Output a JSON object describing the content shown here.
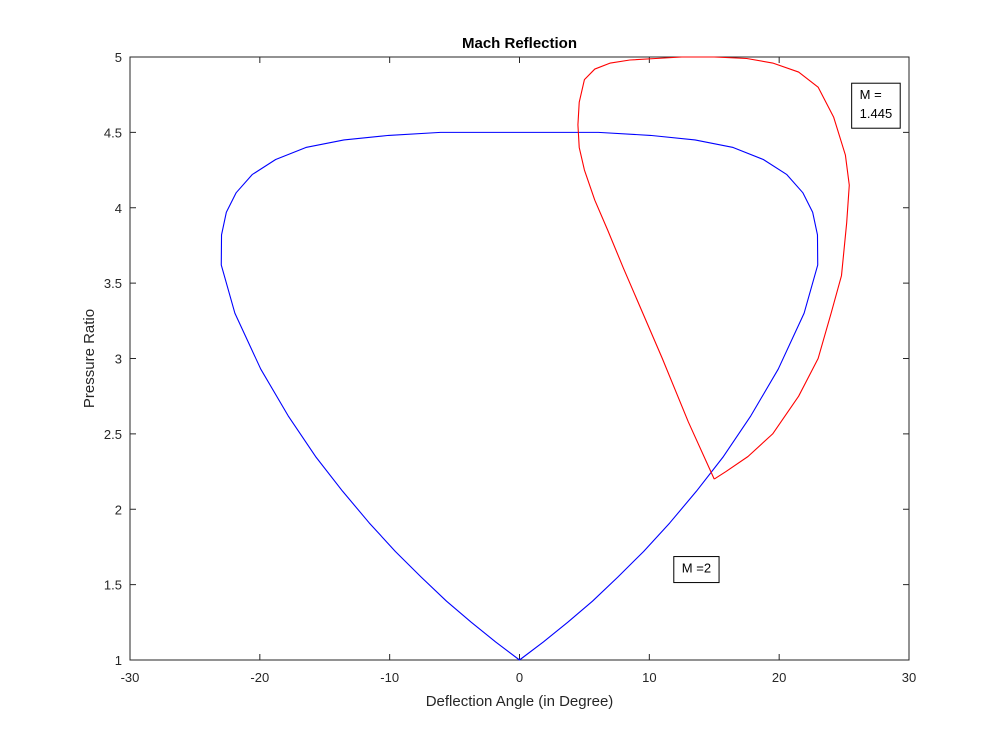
{
  "chart_data": {
    "type": "line",
    "title": "Mach Reflection",
    "xlabel": "Deflection Angle (in Degree)",
    "ylabel": "Pressure Ratio",
    "xlim": [
      -30,
      30
    ],
    "ylim": [
      1,
      5
    ],
    "xticks": [
      -30,
      -20,
      -10,
      0,
      10,
      20,
      30
    ],
    "xtick_labels": [
      "-30",
      "-20",
      "-10",
      "0",
      "10",
      "20",
      "30"
    ],
    "yticks": [
      1,
      1.5,
      2,
      2.5,
      3,
      3.5,
      4,
      4.5,
      5
    ],
    "ytick_labels": [
      "1",
      "1.5",
      "2",
      "2.5",
      "3",
      "3.5",
      "4",
      "4.5",
      "5"
    ],
    "grid": false,
    "series": [
      {
        "color": "#0000ff",
        "x": [
          0,
          1.84,
          3.71,
          5.62,
          7.57,
          9.56,
          11.58,
          13.63,
          15.71,
          17.82,
          19.93,
          21.92,
          22.97,
          22.95,
          22.58,
          21.82,
          20.59,
          18.78,
          16.45,
          13.52,
          10.08,
          6.08,
          2.0,
          0.0,
          -2.0,
          -6.08,
          -10.08,
          -13.52,
          -16.45,
          -18.78,
          -20.59,
          -21.82,
          -22.58,
          -22.95,
          -22.97,
          -21.92,
          -19.93,
          -17.82,
          -15.71,
          -13.63,
          -11.58,
          -9.56,
          -7.57,
          -5.62,
          -3.71,
          -1.84,
          0
        ],
        "y": [
          1.0,
          1.12,
          1.25,
          1.39,
          1.55,
          1.72,
          1.91,
          2.12,
          2.35,
          2.62,
          2.93,
          3.3,
          3.62,
          3.82,
          3.97,
          4.1,
          4.22,
          4.32,
          4.4,
          4.45,
          4.48,
          4.5,
          4.5,
          4.5,
          4.5,
          4.5,
          4.48,
          4.45,
          4.4,
          4.32,
          4.22,
          4.1,
          3.97,
          3.82,
          3.62,
          3.3,
          2.93,
          2.62,
          2.35,
          2.12,
          1.91,
          1.72,
          1.55,
          1.39,
          1.25,
          1.12,
          1.0
        ]
      },
      {
        "color": "#ff0000",
        "x": [
          15.0,
          13.0,
          11.0,
          9.5,
          8.0,
          6.8,
          5.8,
          5.0,
          4.6,
          4.5,
          4.6,
          5.0,
          5.8,
          7.0,
          8.5,
          10.5,
          12.5,
          15.0,
          17.5,
          19.5,
          21.5,
          23.0,
          24.2,
          25.1,
          25.4,
          25.2,
          24.8,
          24.0,
          23.0,
          21.5,
          19.5,
          17.6,
          15.9,
          15.0
        ],
        "y": [
          2.2,
          2.58,
          3.0,
          3.3,
          3.6,
          3.85,
          4.05,
          4.25,
          4.4,
          4.55,
          4.7,
          4.85,
          4.92,
          4.96,
          4.98,
          4.99,
          5.0,
          5.0,
          4.99,
          4.96,
          4.9,
          4.8,
          4.6,
          4.35,
          4.15,
          3.9,
          3.55,
          3.3,
          3.0,
          2.75,
          2.5,
          2.35,
          2.25,
          2.2
        ]
      }
    ],
    "annotations": [
      {
        "lines": [
          "M =",
          "1.445"
        ],
        "x": 26.2,
        "y": 4.72,
        "anchor": "left"
      },
      {
        "lines": [
          "M =2"
        ],
        "x": 12.5,
        "y": 1.58,
        "anchor": "left"
      }
    ]
  }
}
